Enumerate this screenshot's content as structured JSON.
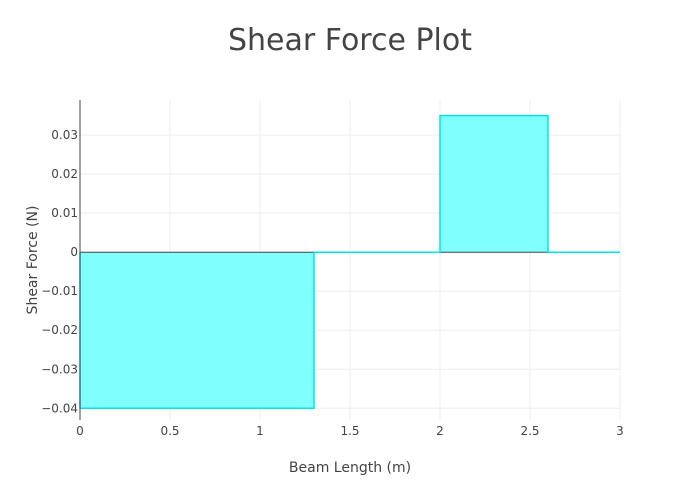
{
  "chart_data": {
    "type": "area",
    "title": "Shear Force Plot",
    "xlabel": "Beam Length (m)",
    "ylabel": "Shear Force (N)",
    "xlim": [
      0,
      3
    ],
    "ylim": [
      -0.043,
      0.039
    ],
    "x_ticks": [
      0,
      0.5,
      1,
      1.5,
      2,
      2.5,
      3
    ],
    "x_tick_labels": [
      "0",
      "0.5",
      "1",
      "1.5",
      "2",
      "2.5",
      "3"
    ],
    "y_ticks": [
      -0.04,
      -0.03,
      -0.02,
      -0.01,
      0,
      0.01,
      0.02,
      0.03
    ],
    "y_tick_labels": [
      "−0.04",
      "−0.03",
      "−0.02",
      "−0.01",
      "0",
      "0.01",
      "0.02",
      "0.03"
    ],
    "grid": true,
    "series": [
      {
        "x": [
          0,
          0,
          1.3,
          1.3,
          2,
          2,
          2.6,
          2.6,
          3
        ],
        "y": [
          0,
          -0.04,
          -0.04,
          0,
          0,
          0.035,
          0.035,
          0,
          0
        ]
      }
    ],
    "colors": {
      "fill": "#80ffff",
      "line": "#00e5e5",
      "grid": "#eeeeee",
      "axis": "#444444",
      "text": "#444444",
      "zero_line": "#444444"
    }
  }
}
